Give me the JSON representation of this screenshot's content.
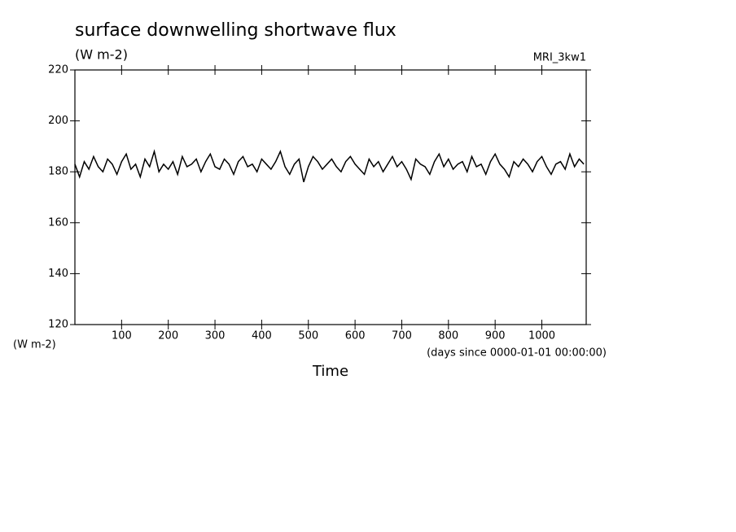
{
  "chart_data": {
    "type": "line",
    "title": "surface downwelling shortwave flux",
    "units": "(W m-2)",
    "dataset": "MRI_3kw1",
    "y_label": "(W m-2)",
    "x_units": "(days since 0000-01-01 00:00:00)",
    "x_label": "Time",
    "color": "#000000",
    "xlim": [
      0,
      1095
    ],
    "xticks": [
      100,
      200,
      300,
      400,
      500,
      600,
      700,
      800,
      900,
      1000
    ],
    "ylim": [
      120,
      220
    ],
    "yticks": [
      120,
      140,
      160,
      180,
      200,
      220
    ],
    "x": [
      0,
      10,
      20,
      30,
      40,
      50,
      60,
      70,
      80,
      90,
      100,
      110,
      120,
      130,
      140,
      150,
      160,
      170,
      180,
      190,
      200,
      210,
      220,
      230,
      240,
      250,
      260,
      270,
      280,
      290,
      300,
      310,
      320,
      330,
      340,
      350,
      360,
      370,
      380,
      390,
      400,
      410,
      420,
      430,
      440,
      450,
      460,
      470,
      480,
      490,
      500,
      510,
      520,
      530,
      540,
      550,
      560,
      570,
      580,
      590,
      600,
      610,
      620,
      630,
      640,
      650,
      660,
      670,
      680,
      690,
      700,
      710,
      720,
      730,
      740,
      750,
      760,
      770,
      780,
      790,
      800,
      810,
      820,
      830,
      840,
      850,
      860,
      870,
      880,
      890,
      900,
      910,
      920,
      930,
      940,
      950,
      960,
      970,
      980,
      990,
      1000,
      1010,
      1020,
      1030,
      1040,
      1050,
      1060,
      1070,
      1080,
      1090
    ],
    "values": [
      183,
      178,
      184,
      181,
      186,
      182,
      180,
      185,
      183,
      179,
      184,
      187,
      181,
      183,
      178,
      185,
      182,
      188,
      180,
      183,
      181,
      184,
      179,
      186,
      182,
      183,
      185,
      180,
      184,
      187,
      182,
      181,
      185,
      183,
      179,
      184,
      186,
      182,
      183,
      180,
      185,
      183,
      181,
      184,
      188,
      182,
      179,
      183,
      185,
      176,
      182,
      186,
      184,
      181,
      183,
      185,
      182,
      180,
      184,
      186,
      183,
      181,
      179,
      185,
      182,
      184,
      180,
      183,
      186,
      182,
      184,
      181,
      177,
      185,
      183,
      182,
      179,
      184,
      187,
      182,
      185,
      181,
      183,
      184,
      180,
      186,
      182,
      183,
      179,
      184,
      187,
      183,
      181,
      178,
      184,
      182,
      185,
      183,
      180,
      184,
      186,
      182,
      179,
      183,
      184,
      181,
      187,
      182,
      185,
      183
    ]
  }
}
